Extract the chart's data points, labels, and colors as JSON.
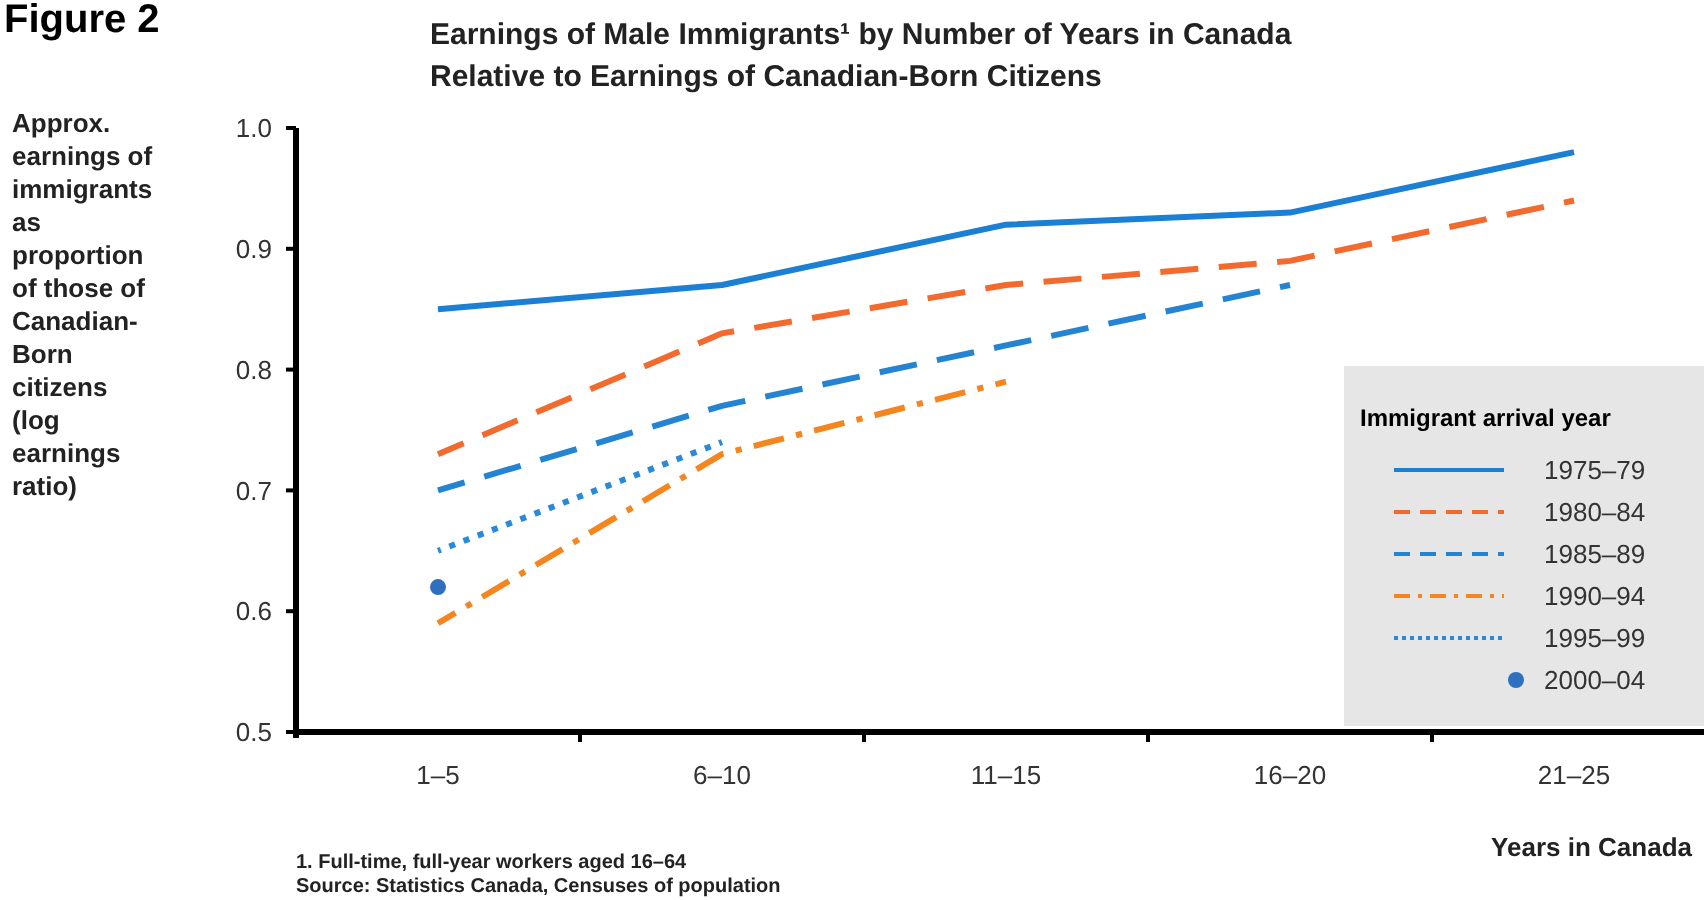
{
  "chart_data": {
    "type": "line",
    "title": "Figure 2",
    "subtitle": "Earnings of Male Immigrants¹ by Number of Years in Canada\nRelative to Earnings of Canadian-Born Citizens",
    "ylabel": "Approx.\nearnings of\nimmigrants\nas\nproportion\nof those of\nCanadian-\nBorn\ncitizens\n(log\nearnings\nratio)",
    "xlabel": "Years in Canada",
    "legend_title": "Immigrant arrival year",
    "categories": [
      "1–5",
      "6–10",
      "11–15",
      "16–20",
      "21–25"
    ],
    "series": [
      {
        "name": "1975–79",
        "color": "#1b7fd3",
        "line_style": "solid",
        "values": [
          0.85,
          0.87,
          0.92,
          0.93,
          0.98
        ]
      },
      {
        "name": "1980–84",
        "color": "#f26a2e",
        "line_style": "dashed",
        "values": [
          0.73,
          0.83,
          0.87,
          0.89,
          0.94
        ]
      },
      {
        "name": "1985–89",
        "color": "#2584d2",
        "line_style": "dashed",
        "values": [
          0.7,
          0.77,
          0.82,
          0.87,
          null
        ]
      },
      {
        "name": "1990–94",
        "color": "#f5861f",
        "line_style": "dashdot",
        "values": [
          0.59,
          0.73,
          0.79,
          null,
          null
        ]
      },
      {
        "name": "1995–99",
        "color": "#2a8ad8",
        "line_style": "dotted",
        "values": [
          0.65,
          0.74,
          null,
          null,
          null
        ]
      },
      {
        "name": "2000–04",
        "type": "scatter",
        "marker": "circle",
        "color": "#2f6fc0",
        "values": [
          0.62,
          null,
          null,
          null,
          null
        ]
      }
    ],
    "ylim": [
      0.5,
      1.0
    ],
    "yticks": [
      {
        "value": 0.5,
        "label": "0.5"
      },
      {
        "value": 0.6,
        "label": "0.6"
      },
      {
        "value": 0.7,
        "label": "0.7"
      },
      {
        "value": 0.8,
        "label": "0.8"
      },
      {
        "value": 0.9,
        "label": "0.9"
      },
      {
        "value": 1.0,
        "label": "1.0"
      }
    ],
    "grid": false,
    "legend": "bottom right",
    "annotations": [
      "1. Full-time, full-year workers aged 16–64",
      "Source: Statistics Canada, Censuses of population"
    ]
  }
}
